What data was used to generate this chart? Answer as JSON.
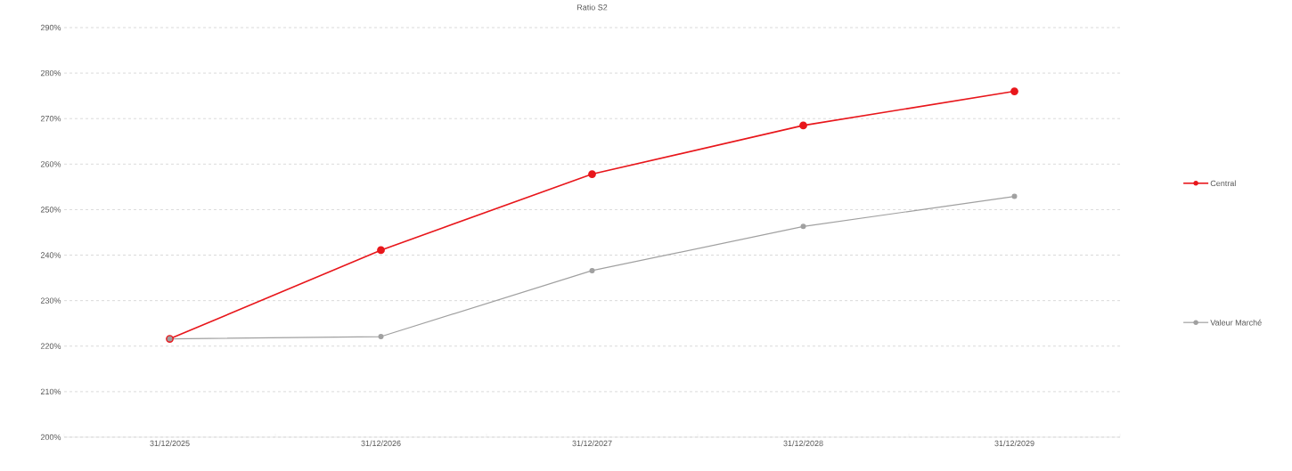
{
  "chart_data": {
    "type": "line",
    "title": "Ratio S2",
    "categories": [
      "31/12/2025",
      "31/12/2026",
      "31/12/2027",
      "31/12/2028",
      "31/12/2029"
    ],
    "series": [
      {
        "name": "Central",
        "color": "#e8161b",
        "values": [
          221.6,
          241.1,
          257.8,
          268.5,
          276.0
        ]
      },
      {
        "name": "Valeur Marché",
        "color": "#a0a0a0",
        "values": [
          221.6,
          222.1,
          236.6,
          246.3,
          252.9
        ]
      }
    ],
    "ylim": [
      200,
      290
    ],
    "yticks": [
      {
        "value": 200,
        "label": "200%"
      },
      {
        "value": 210,
        "label": "210%"
      },
      {
        "value": 220,
        "label": "220%"
      },
      {
        "value": 230,
        "label": "230%"
      },
      {
        "value": 240,
        "label": "240%"
      },
      {
        "value": 250,
        "label": "250%"
      },
      {
        "value": 260,
        "label": "260%"
      },
      {
        "value": 270,
        "label": "270%"
      },
      {
        "value": 280,
        "label": "280%"
      },
      {
        "value": 290,
        "label": "290%"
      }
    ],
    "grid": "y",
    "legend": "right",
    "marker": "circle",
    "line_style": "solid"
  }
}
